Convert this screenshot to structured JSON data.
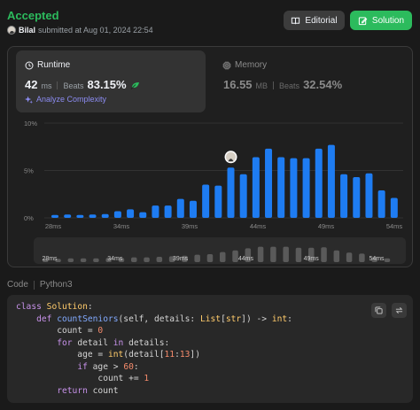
{
  "header": {
    "status": "Accepted",
    "user": "Bilal",
    "submitted_text": "submitted at Aug 01, 2024 22:54",
    "editorial_label": "Editorial",
    "solution_label": "Solution"
  },
  "runtime": {
    "title": "Runtime",
    "value": "42",
    "unit": "ms",
    "beats_label": "Beats",
    "beats_pct": "83.15%",
    "analyze_label": "Analyze Complexity"
  },
  "memory": {
    "title": "Memory",
    "value": "16.55",
    "unit": "MB",
    "beats_label": "Beats",
    "beats_pct": "32.54%"
  },
  "colors": {
    "accepted": "#2cbb5d",
    "bar": "#1e7cf2",
    "bar_muted": "#5a5a5a",
    "accent_purple": "#8c8cf2"
  },
  "chart_data": {
    "type": "bar",
    "y_ticks": [
      "10%",
      "5%",
      "0%"
    ],
    "ylim": [
      0,
      10
    ],
    "x_tick_labels": [
      "28ms",
      "34ms",
      "39ms",
      "44ms",
      "49ms",
      "54ms"
    ],
    "values": [
      0.3,
      0.35,
      0.3,
      0.35,
      0.4,
      0.7,
      0.9,
      0.6,
      1.3,
      1.3,
      2.0,
      1.8,
      3.5,
      3.4,
      5.3,
      4.6,
      6.4,
      7.3,
      6.4,
      6.3,
      6.3,
      7.3,
      7.7,
      4.6,
      4.3,
      4.7,
      2.9,
      2.1
    ],
    "highlight_index": 14,
    "overview_values": [
      0.3,
      0.3,
      0.35,
      0.35,
      0.35,
      0.4,
      0.4,
      0.45,
      0.45,
      0.5,
      0.55,
      0.6,
      0.7,
      0.75,
      0.95,
      1.1,
      1.3,
      1.45,
      1.45,
      1.45,
      1.35,
      1.35,
      1.4,
      1.1,
      0.9,
      0.8,
      0.5,
      0.35
    ],
    "overview_tick_labels": [
      "28ms",
      "34ms",
      "39ms",
      "44ms",
      "49ms",
      "54ms"
    ]
  },
  "code": {
    "section_label": "Code",
    "language": "Python3"
  }
}
